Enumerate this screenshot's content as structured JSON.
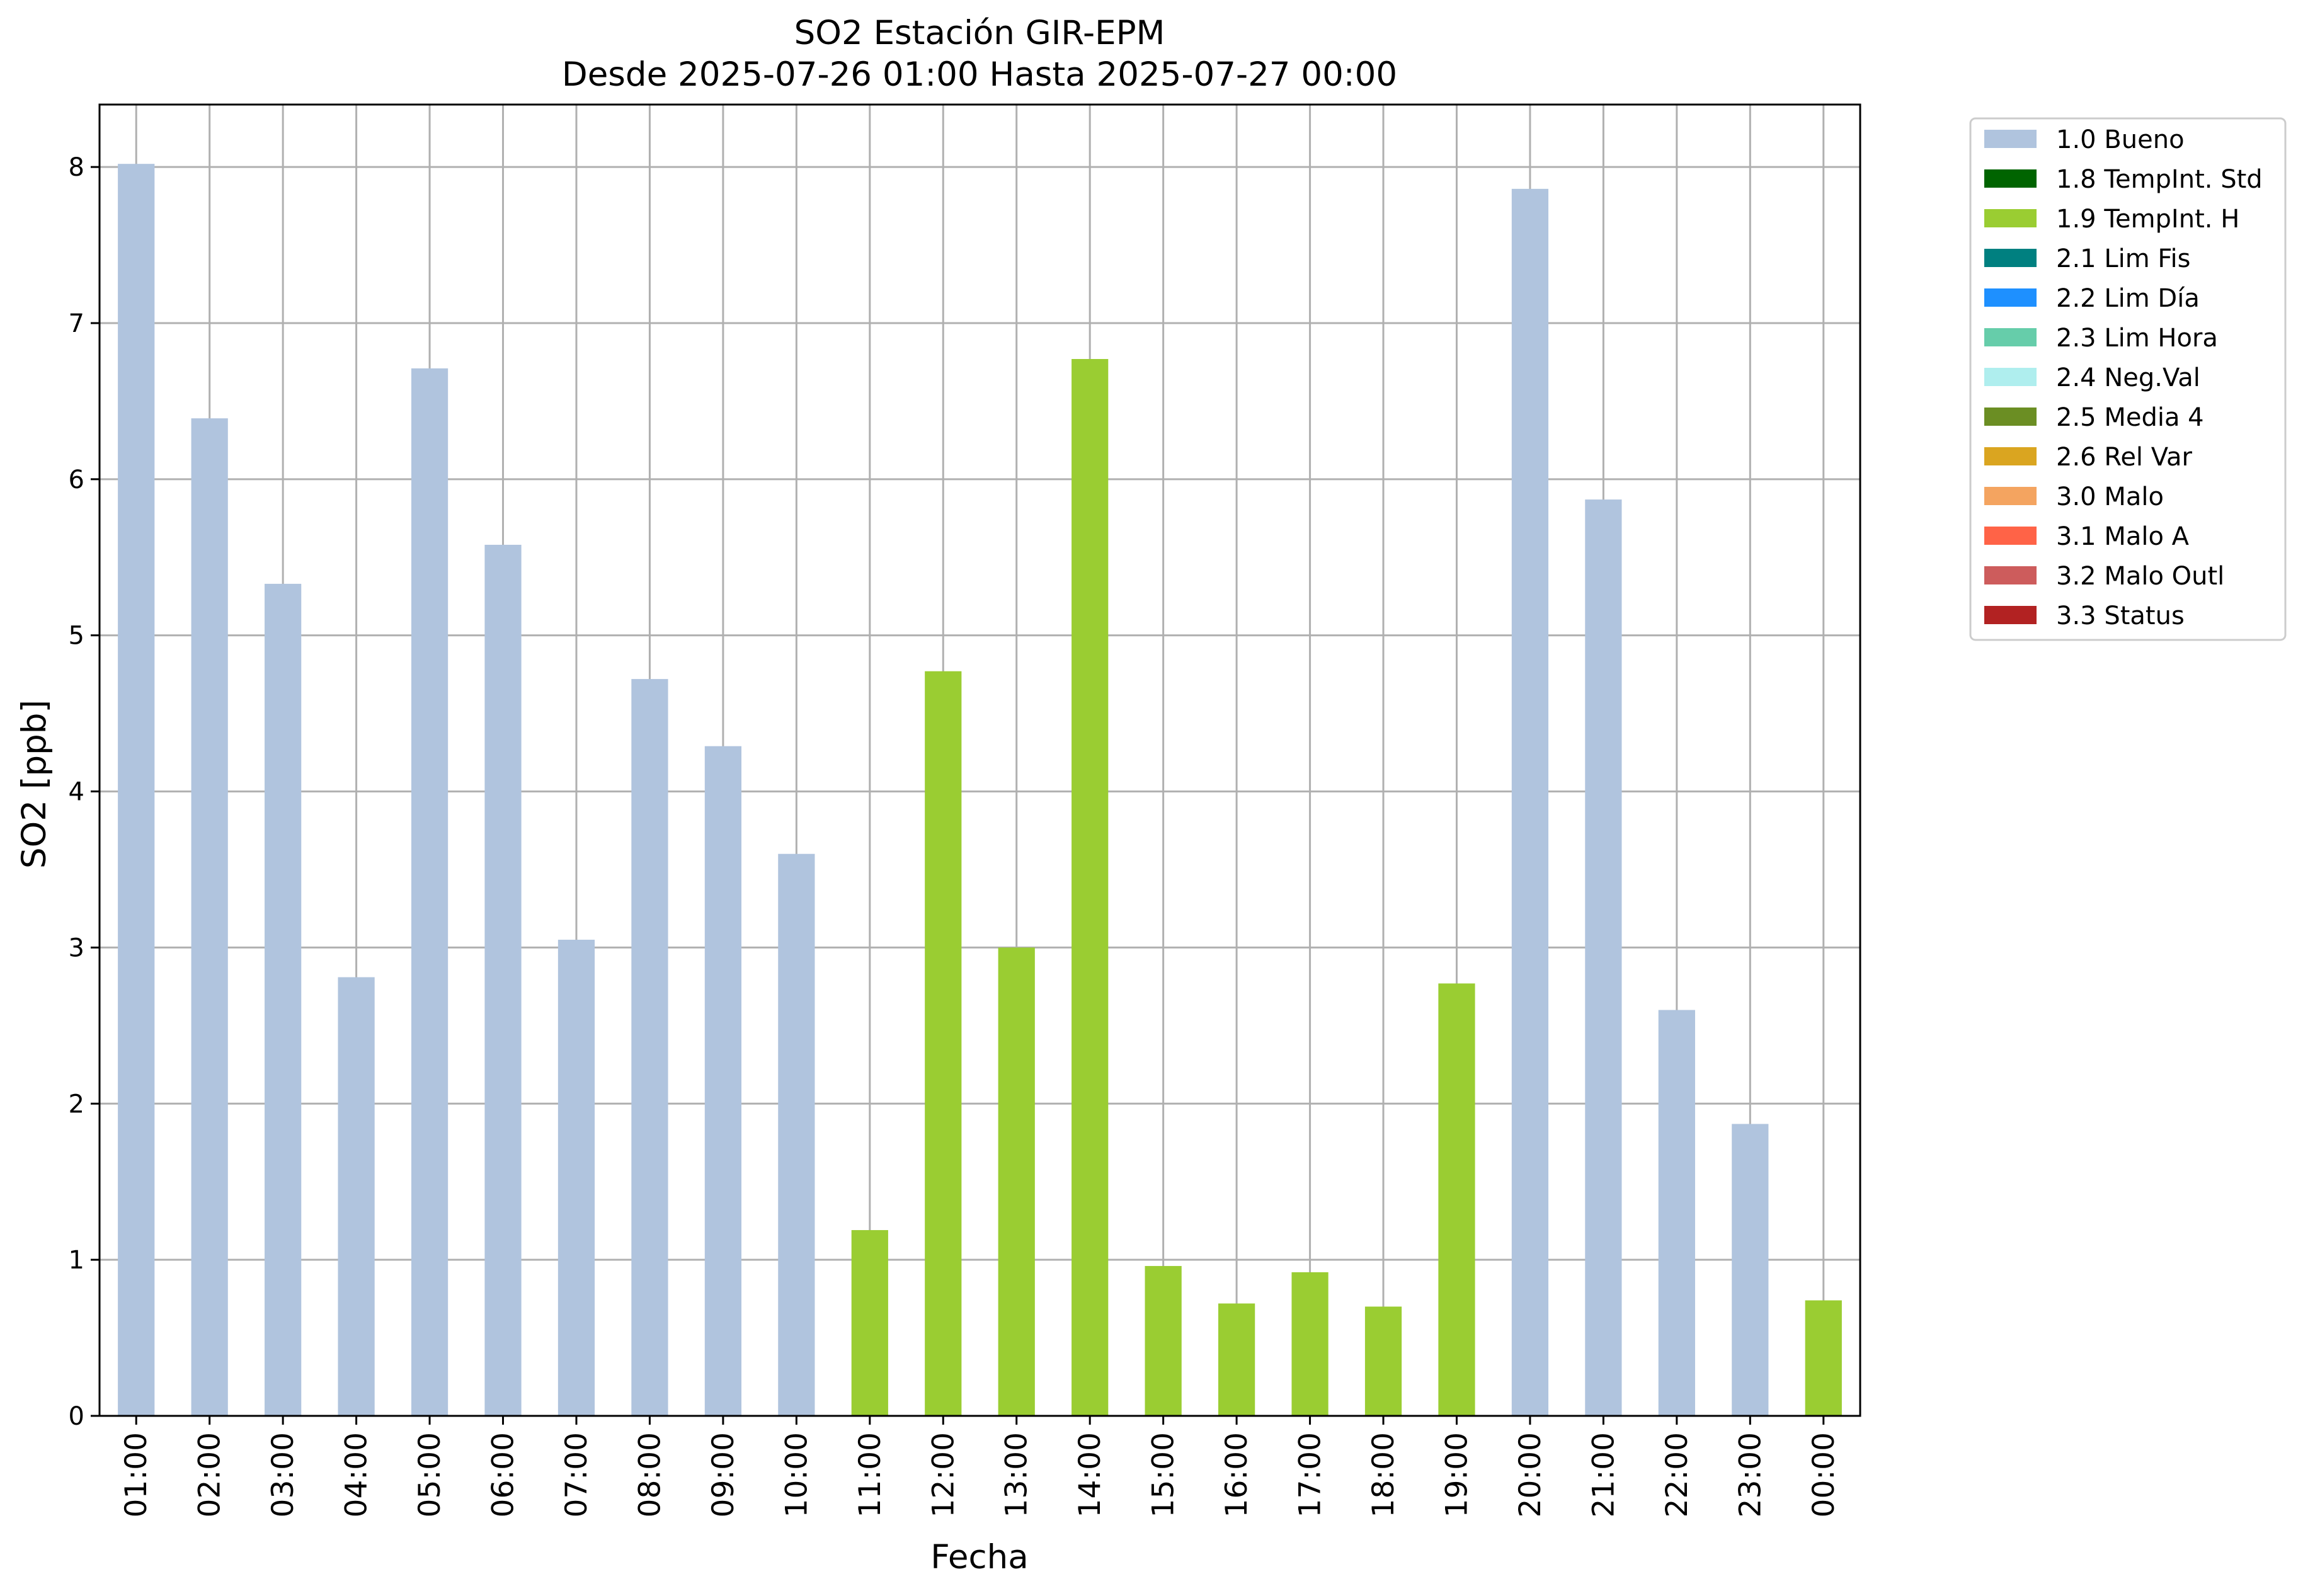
{
  "chart_data": {
    "type": "bar",
    "title": "SO2 Estación GIR-EPM",
    "subtitle": "Desde 2025-07-26 01:00 Hasta 2025-07-27 00:00",
    "xlabel": "Fecha",
    "ylabel": "SO2 [ppb]",
    "ylim": [
      0,
      8.4
    ],
    "yticks": [
      "0",
      "1",
      "2",
      "3",
      "4",
      "5",
      "6",
      "7",
      "8"
    ],
    "grid": true,
    "legend_position": "outside-right-top",
    "categories": [
      "01:00",
      "02:00",
      "03:00",
      "04:00",
      "05:00",
      "06:00",
      "07:00",
      "08:00",
      "09:00",
      "10:00",
      "11:00",
      "12:00",
      "13:00",
      "14:00",
      "15:00",
      "16:00",
      "17:00",
      "18:00",
      "19:00",
      "20:00",
      "21:00",
      "22:00",
      "23:00",
      "00:00"
    ],
    "values": [
      8.02,
      6.39,
      5.33,
      2.81,
      6.71,
      5.58,
      3.05,
      4.72,
      4.29,
      3.6,
      1.19,
      4.77,
      3.0,
      6.77,
      0.96,
      0.72,
      0.92,
      0.7,
      2.77,
      7.86,
      5.87,
      2.6,
      1.87,
      0.74
    ],
    "flags": [
      "1.0 Bueno",
      "1.0 Bueno",
      "1.0 Bueno",
      "1.0 Bueno",
      "1.0 Bueno",
      "1.0 Bueno",
      "1.0 Bueno",
      "1.0 Bueno",
      "1.0 Bueno",
      "1.0 Bueno",
      "1.9 TempInt. H",
      "1.9 TempInt. H",
      "1.9 TempInt. H",
      "1.9 TempInt. H",
      "1.9 TempInt. H",
      "1.9 TempInt. H",
      "1.9 TempInt. H",
      "1.9 TempInt. H",
      "1.9 TempInt. H",
      "1.0 Bueno",
      "1.0 Bueno",
      "1.0 Bueno",
      "1.0 Bueno",
      "1.9 TempInt. H"
    ],
    "legend": [
      {
        "label": "1.0 Bueno",
        "color": "#b0c4de"
      },
      {
        "label": "1.8 TempInt. Std",
        "color": "#006400"
      },
      {
        "label": "1.9 TempInt. H",
        "color": "#9acd32"
      },
      {
        "label": "2.1 Lim Fis",
        "color": "#008080"
      },
      {
        "label": "2.2 Lim Día",
        "color": "#1e90ff"
      },
      {
        "label": "2.3 Lim Hora",
        "color": "#66cdaa"
      },
      {
        "label": "2.4 Neg.Val",
        "color": "#afeeee"
      },
      {
        "label": "2.5 Media 4",
        "color": "#6b8e23"
      },
      {
        "label": "2.6 Rel Var",
        "color": "#daa520"
      },
      {
        "label": "3.0 Malo",
        "color": "#f4a460"
      },
      {
        "label": "3.1 Malo A",
        "color": "#ff6347"
      },
      {
        "label": "3.2 Malo Outl",
        "color": "#cd5c5c"
      },
      {
        "label": "3.3 Status",
        "color": "#b22222"
      }
    ]
  }
}
